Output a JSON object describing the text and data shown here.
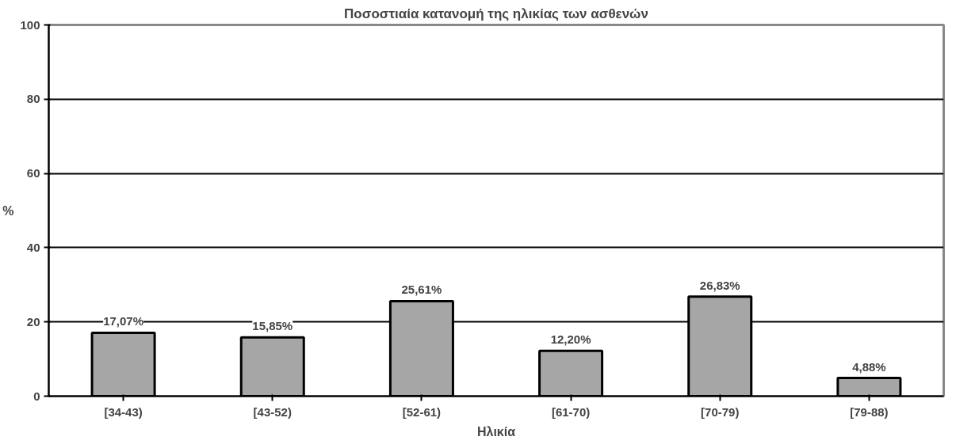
{
  "chart_data": {
    "type": "bar",
    "title": "Ποσοστιαία κατανομή της ηλικίας των ασθενών",
    "xlabel": "Ηλικία",
    "ylabel": "%",
    "categories": [
      "[34-43)",
      "[43-52)",
      "[52-61)",
      "[61-70)",
      "[70-79)",
      "[79-88)"
    ],
    "values": [
      17.07,
      15.85,
      25.61,
      12.2,
      26.83,
      4.88
    ],
    "value_labels": [
      "17,07%",
      "15,85%",
      "25,61%",
      "12,20%",
      "26,83%",
      "4,88%"
    ],
    "color": "#a6a6a6",
    "ylim": [
      0,
      100
    ],
    "yticks": [
      0,
      20,
      40,
      60,
      80,
      100
    ],
    "grid": "y"
  }
}
